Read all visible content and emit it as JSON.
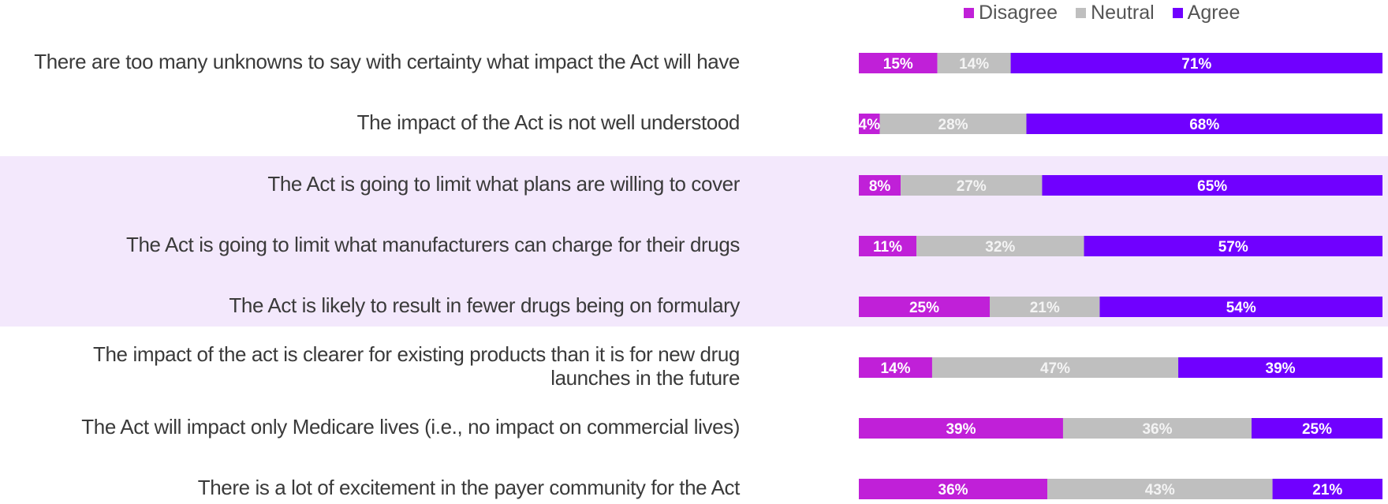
{
  "chart_data": {
    "type": "bar",
    "orientation": "horizontal",
    "stacked": true,
    "normalized": true,
    "legend_position": "top-right",
    "categories": [
      "There are too many unknowns to say with certainty what impact the Act will have",
      "The impact of the Act is not well understood",
      "The Act is going to limit what plans are willing to cover",
      "The Act is going to limit what manufacturers can charge for their drugs",
      "The Act is likely to result in fewer drugs being on formulary",
      "The impact of the act is clearer for existing products than it is for new drug launches in the future",
      "The Act will impact only Medicare lives (i.e., no impact on commercial lives)",
      "There is a lot of excitement in the payer community for the Act"
    ],
    "series": [
      {
        "name": "Disagree",
        "color": "#c020d8",
        "values": [
          15,
          4,
          8,
          11,
          25,
          14,
          39,
          36
        ]
      },
      {
        "name": "Neutral",
        "color": "#bfbfbf",
        "values": [
          14,
          28,
          27,
          32,
          21,
          47,
          36,
          43
        ]
      },
      {
        "name": "Agree",
        "color": "#7000ff",
        "values": [
          71,
          68,
          65,
          57,
          54,
          39,
          25,
          21
        ]
      }
    ],
    "data_labels": [
      [
        "15%",
        "14%",
        "71%"
      ],
      [
        "4%",
        "28%",
        "68%"
      ],
      [
        "8%",
        "27%",
        "65%"
      ],
      [
        "11%",
        "32%",
        "57%"
      ],
      [
        "25%",
        "21%",
        "54%"
      ],
      [
        "14%",
        "47%",
        "39%"
      ],
      [
        "39%",
        "36%",
        "25%"
      ],
      [
        "36%",
        "43%",
        "21%"
      ]
    ],
    "highlight_rows": [
      2,
      3,
      4
    ],
    "highlight_color": "#f3e8fc",
    "grid": false
  }
}
